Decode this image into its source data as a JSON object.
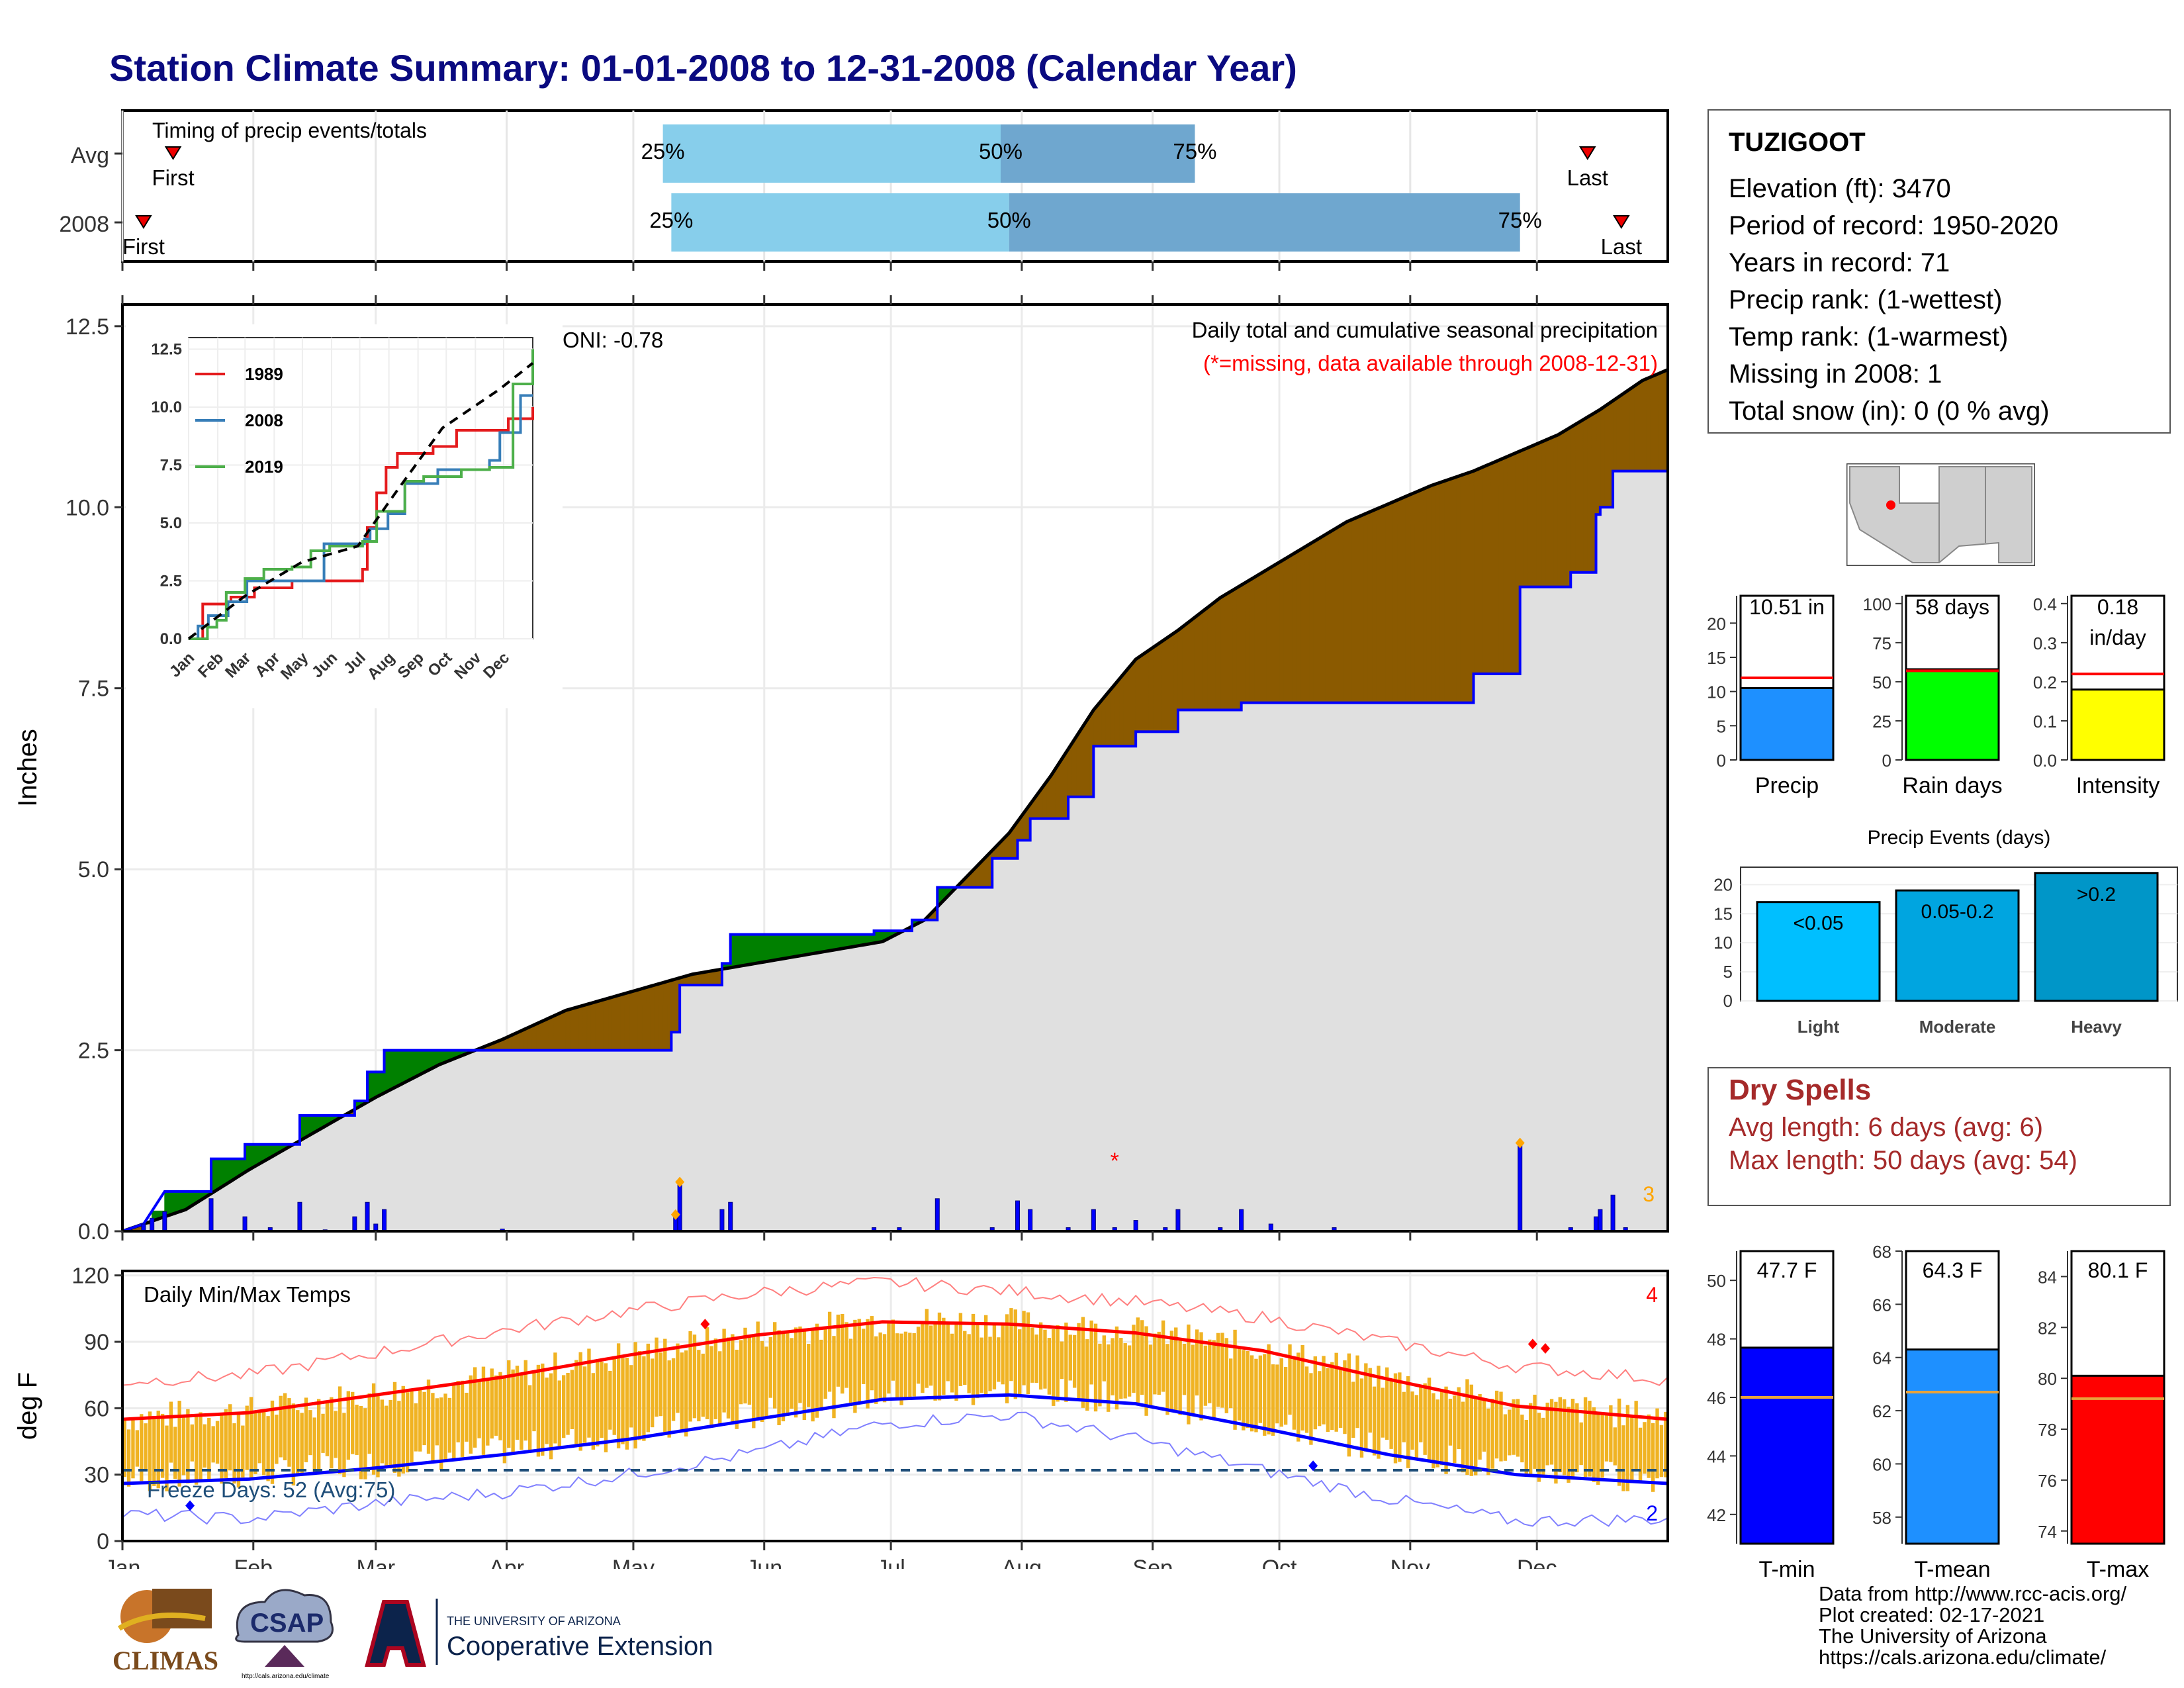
{
  "title": "Station Climate Summary: 01-01-2008 to 12-31-2008 (Calendar Year)",
  "months": [
    "Jan",
    "Feb",
    "Mar",
    "Apr",
    "May",
    "Jun",
    "Jul",
    "Aug",
    "Sep",
    "Oct",
    "Nov",
    "Dec"
  ],
  "colors": {
    "title": "#0a0a80",
    "cum_surplus": "#008000",
    "cum_deficit": "#8b5a00",
    "daily_precip": "#0000ff",
    "normal_fill": "#e0e0e0",
    "tmax": "#ff0000",
    "tmin": "#0000ff",
    "temp_bar": "#f0b323"
  },
  "timing_panel": {
    "title": "Timing of precip events/totals",
    "rows": [
      {
        "label": "Avg",
        "first_label": "First",
        "last_label": "Last",
        "q25": "25%",
        "q50": "50%",
        "q75": "75%"
      },
      {
        "label": "2008",
        "first_label": "First",
        "last_label": "Last",
        "q25": "25%",
        "q50": "50%",
        "q75": "75%"
      }
    ],
    "chart_data": {
      "type": "bar",
      "note_units": "day of year",
      "rows": [
        {
          "label": "Avg",
          "first": 12,
          "p25": 128,
          "p50": 208,
          "p75": 254,
          "last": 347
        },
        {
          "label": "2008",
          "first": 5,
          "p25": 130,
          "p50": 210,
          "p75": 331,
          "last": 355
        }
      ]
    }
  },
  "precip_panel": {
    "ylabel": "Inches",
    "oni": "ONI: -0.78",
    "subtitle": "Daily total and cumulative seasonal precipitation",
    "missing_note": "(*=missing, data available through 2008-12-31)",
    "count_label": "3",
    "yticks": [
      "0.0",
      "2.5",
      "5.0",
      "7.5",
      "10.0",
      "12.5"
    ],
    "chart_data": {
      "type": "area",
      "x_units": "day of year",
      "ylim": [
        0,
        12.8
      ],
      "normal_cumulative": [
        [
          0,
          0
        ],
        [
          15,
          0.3
        ],
        [
          30,
          0.85
        ],
        [
          45,
          1.35
        ],
        [
          60,
          1.85
        ],
        [
          75,
          2.3
        ],
        [
          90,
          2.65
        ],
        [
          105,
          3.05
        ],
        [
          120,
          3.3
        ],
        [
          135,
          3.55
        ],
        [
          150,
          3.7
        ],
        [
          165,
          3.85
        ],
        [
          180,
          4.0
        ],
        [
          190,
          4.3
        ],
        [
          200,
          4.9
        ],
        [
          210,
          5.5
        ],
        [
          220,
          6.3
        ],
        [
          230,
          7.2
        ],
        [
          240,
          7.9
        ],
        [
          250,
          8.3
        ],
        [
          260,
          8.75
        ],
        [
          270,
          9.1
        ],
        [
          280,
          9.45
        ],
        [
          290,
          9.8
        ],
        [
          300,
          10.05
        ],
        [
          310,
          10.3
        ],
        [
          320,
          10.5
        ],
        [
          330,
          10.75
        ],
        [
          340,
          11.0
        ],
        [
          350,
          11.35
        ],
        [
          360,
          11.75
        ],
        [
          366,
          11.9
        ]
      ],
      "observed_2008_cumulative": [
        [
          0,
          0
        ],
        [
          5,
          0.1
        ],
        [
          7,
          0.28
        ],
        [
          10,
          0.55
        ],
        [
          21,
          0.55
        ],
        [
          21,
          1.0
        ],
        [
          29,
          1.0
        ],
        [
          29,
          1.2
        ],
        [
          42,
          1.2
        ],
        [
          42,
          1.6
        ],
        [
          55,
          1.6
        ],
        [
          55,
          1.8
        ],
        [
          58,
          1.8
        ],
        [
          58,
          2.2
        ],
        [
          62,
          2.2
        ],
        [
          62,
          2.5
        ],
        [
          130,
          2.5
        ],
        [
          130,
          2.75
        ],
        [
          132,
          2.75
        ],
        [
          132,
          3.4
        ],
        [
          142,
          3.4
        ],
        [
          142,
          3.7
        ],
        [
          144,
          3.7
        ],
        [
          144,
          4.1
        ],
        [
          178,
          4.1
        ],
        [
          178,
          4.15
        ],
        [
          187,
          4.15
        ],
        [
          187,
          4.3
        ],
        [
          193,
          4.3
        ],
        [
          193,
          4.75
        ],
        [
          206,
          4.75
        ],
        [
          206,
          5.15
        ],
        [
          212,
          5.15
        ],
        [
          212,
          5.4
        ],
        [
          215,
          5.4
        ],
        [
          215,
          5.7
        ],
        [
          224,
          5.7
        ],
        [
          224,
          6.0
        ],
        [
          230,
          6.0
        ],
        [
          230,
          6.7
        ],
        [
          240,
          6.7
        ],
        [
          240,
          6.9
        ],
        [
          250,
          6.9
        ],
        [
          250,
          7.2
        ],
        [
          265,
          7.2
        ],
        [
          265,
          7.3
        ],
        [
          320,
          7.3
        ],
        [
          320,
          7.7
        ],
        [
          331,
          7.7
        ],
        [
          331,
          8.9
        ],
        [
          343,
          8.9
        ],
        [
          343,
          9.1
        ],
        [
          349,
          9.1
        ],
        [
          349,
          9.9
        ],
        [
          350,
          9.9
        ],
        [
          350,
          10.0
        ],
        [
          353,
          10.0
        ],
        [
          353,
          10.5
        ],
        [
          366,
          10.5
        ]
      ],
      "daily_precip": [
        [
          5,
          0.1
        ],
        [
          7,
          0.18
        ],
        [
          10,
          0.27
        ],
        [
          21,
          0.45
        ],
        [
          29,
          0.2
        ],
        [
          35,
          0.05
        ],
        [
          42,
          0.4
        ],
        [
          48,
          0.02
        ],
        [
          55,
          0.2
        ],
        [
          58,
          0.4
        ],
        [
          60,
          0.1
        ],
        [
          62,
          0.3
        ],
        [
          90,
          0.03
        ],
        [
          131,
          0.25
        ],
        [
          132,
          0.65
        ],
        [
          142,
          0.3
        ],
        [
          144,
          0.4
        ],
        [
          178,
          0.05
        ],
        [
          184,
          0.05
        ],
        [
          193,
          0.45
        ],
        [
          206,
          0.05
        ],
        [
          212,
          0.42
        ],
        [
          215,
          0.3
        ],
        [
          224,
          0.05
        ],
        [
          230,
          0.3
        ],
        [
          235,
          0.05
        ],
        [
          240,
          0.15
        ],
        [
          247,
          0.05
        ],
        [
          250,
          0.3
        ],
        [
          260,
          0.05
        ],
        [
          265,
          0.3
        ],
        [
          272,
          0.1
        ],
        [
          287,
          0.05
        ],
        [
          331,
          1.2
        ],
        [
          343,
          0.05
        ],
        [
          349,
          0.2
        ],
        [
          350,
          0.3
        ],
        [
          353,
          0.5
        ],
        [
          356,
          0.05
        ]
      ],
      "max_markers": [
        [
          131,
          0.23
        ],
        [
          132,
          0.68
        ],
        [
          331,
          1.22
        ]
      ],
      "missing_markers": [
        [
          235,
          0.98
        ]
      ]
    }
  },
  "inset_chart": {
    "legend": [
      {
        "name": "1989",
        "color": "#e41a1c"
      },
      {
        "name": "2008",
        "color": "#377eb8"
      },
      {
        "name": "2019",
        "color": "#4daf4a"
      }
    ],
    "months": [
      "Jan",
      "Feb",
      "Mar",
      "Apr",
      "May",
      "Jun",
      "Jul",
      "Aug",
      "Sep",
      "Oct",
      "Nov",
      "Dec"
    ],
    "yticks": [
      "0.0",
      "2.5",
      "5.0",
      "7.5",
      "10.0",
      "12.5"
    ],
    "chart_data": {
      "type": "line",
      "x_units": "day of year",
      "ylim": [
        0,
        13
      ],
      "series": [
        {
          "name": "1989",
          "values": [
            [
              0,
              0
            ],
            [
              15,
              1.5
            ],
            [
              40,
              1.6
            ],
            [
              45,
              1.8
            ],
            [
              70,
              2.2
            ],
            [
              110,
              2.5
            ],
            [
              120,
              2.5
            ],
            [
              185,
              3.0
            ],
            [
              190,
              4.8
            ],
            [
              200,
              6.3
            ],
            [
              210,
              7.4
            ],
            [
              222,
              8.0
            ],
            [
              260,
              8.3
            ],
            [
              285,
              9.0
            ],
            [
              310,
              9.0
            ],
            [
              340,
              9.5
            ],
            [
              366,
              10.0
            ]
          ]
        },
        {
          "name": "2008",
          "values": [
            [
              0,
              0
            ],
            [
              10,
              0.55
            ],
            [
              21,
              1.0
            ],
            [
              42,
              1.6
            ],
            [
              62,
              2.5
            ],
            [
              130,
              2.5
            ],
            [
              144,
              4.1
            ],
            [
              187,
              4.3
            ],
            [
              193,
              4.75
            ],
            [
              212,
              5.4
            ],
            [
              230,
              6.7
            ],
            [
              265,
              7.3
            ],
            [
              320,
              7.7
            ],
            [
              331,
              8.9
            ],
            [
              353,
              10.5
            ],
            [
              366,
              10.5
            ]
          ]
        },
        {
          "name": "2019",
          "values": [
            [
              0,
              0
            ],
            [
              20,
              0.5
            ],
            [
              30,
              0.8
            ],
            [
              40,
              2.0
            ],
            [
              60,
              2.6
            ],
            [
              80,
              3.0
            ],
            [
              110,
              3.1
            ],
            [
              130,
              3.8
            ],
            [
              150,
              4.0
            ],
            [
              185,
              4.2
            ],
            [
              200,
              5.5
            ],
            [
              230,
              6.8
            ],
            [
              250,
              7.0
            ],
            [
              290,
              7.3
            ],
            [
              320,
              7.4
            ],
            [
              345,
              11.0
            ],
            [
              366,
              12.5
            ]
          ]
        },
        {
          "name": "avg",
          "values": [
            [
              0,
              0
            ],
            [
              60,
              1.85
            ],
            [
              120,
              3.3
            ],
            [
              180,
              4.0
            ],
            [
              220,
              6.3
            ],
            [
              270,
              9.1
            ],
            [
              330,
              10.75
            ],
            [
              366,
              11.9
            ]
          ]
        }
      ]
    }
  },
  "temp_panel": {
    "title": "Daily Min/Max Temps",
    "ylabel": "deg F",
    "freeze_label": "Freeze Days: 52 (Avg:75)",
    "count_hi": "4",
    "count_lo": "2",
    "yticks": [
      "0",
      "30",
      "60",
      "90",
      "120"
    ],
    "chart_data": {
      "type": "line",
      "x_units": "day of year",
      "ylim": [
        0,
        122
      ],
      "normal_max": [
        [
          0,
          55
        ],
        [
          30,
          58
        ],
        [
          60,
          66
        ],
        [
          90,
          74
        ],
        [
          120,
          84
        ],
        [
          150,
          93
        ],
        [
          180,
          99
        ],
        [
          210,
          98
        ],
        [
          240,
          94
        ],
        [
          270,
          86
        ],
        [
          300,
          73
        ],
        [
          330,
          61
        ],
        [
          366,
          55
        ]
      ],
      "normal_min": [
        [
          0,
          26
        ],
        [
          30,
          28
        ],
        [
          60,
          33
        ],
        [
          90,
          39
        ],
        [
          120,
          46
        ],
        [
          150,
          55
        ],
        [
          180,
          64
        ],
        [
          210,
          66
        ],
        [
          240,
          62
        ],
        [
          270,
          51
        ],
        [
          300,
          39
        ],
        [
          330,
          30
        ],
        [
          366,
          26
        ]
      ],
      "record_max": [
        [
          0,
          72
        ],
        [
          30,
          75
        ],
        [
          60,
          85
        ],
        [
          90,
          95
        ],
        [
          120,
          104
        ],
        [
          150,
          112
        ],
        [
          180,
          117
        ],
        [
          210,
          113
        ],
        [
          240,
          108
        ],
        [
          270,
          101
        ],
        [
          300,
          90
        ],
        [
          330,
          79
        ],
        [
          366,
          73
        ]
      ],
      "record_min": [
        [
          0,
          12
        ],
        [
          30,
          10
        ],
        [
          60,
          17
        ],
        [
          90,
          22
        ],
        [
          120,
          30
        ],
        [
          150,
          40
        ],
        [
          180,
          53
        ],
        [
          210,
          57
        ],
        [
          240,
          46
        ],
        [
          270,
          32
        ],
        [
          300,
          19
        ],
        [
          330,
          9
        ],
        [
          366,
          10
        ]
      ],
      "freeze_line": 32,
      "record_hi_markers": [
        [
          138,
          98
        ],
        [
          334,
          89
        ],
        [
          337,
          87
        ]
      ],
      "record_lo_markers": [
        [
          16,
          16
        ],
        [
          282,
          34
        ]
      ]
    }
  },
  "station_box": {
    "name": "TUZIGOOT",
    "lines": [
      "Elevation (ft): 3470",
      "Period of record: 1950-2020",
      "Years in record: 71",
      "Precip rank:  (1-wettest)",
      "Temp rank:  (1-warmest)",
      "Missing in 2008: 1",
      "Total snow (in): 0 (0 % avg)"
    ]
  },
  "summary_bars": [
    {
      "name": "Precip",
      "label": "10.51 in",
      "value": 10.51,
      "avg": 12.0,
      "ylim": [
        0,
        24
      ],
      "yticks": [
        "0",
        "5",
        "10",
        "15",
        "20"
      ],
      "color": "#1e90ff"
    },
    {
      "name": "Rain days",
      "label": "58 days",
      "value": 58,
      "avg": 57,
      "ylim": [
        0,
        105
      ],
      "yticks": [
        "0",
        "25",
        "50",
        "75",
        "100"
      ],
      "color": "#00ff00"
    },
    {
      "name": "Intensity",
      "label": "0.18 in/day",
      "value": 0.18,
      "avg": 0.22,
      "ylim": [
        0,
        0.42
      ],
      "yticks": [
        "0.0",
        "0.1",
        "0.2",
        "0.3",
        "0.4"
      ],
      "color": "#ffff00"
    }
  ],
  "events_chart": {
    "title": "Precip Events (days)",
    "yticks": [
      "0",
      "5",
      "10",
      "15",
      "20"
    ],
    "chart_data": {
      "type": "bar",
      "categories": [
        "Light",
        "Moderate",
        "Heavy"
      ],
      "labels": [
        "<0.05",
        "0.05-0.2",
        ">0.2"
      ],
      "values": [
        17,
        19,
        22
      ],
      "ylim": [
        0,
        23
      ]
    }
  },
  "dry_spells": {
    "title": "Dry Spells",
    "avg_line": "Avg length: 6 days (avg: 6)",
    "max_line": "Max length: 50 days (avg: 54)"
  },
  "temp_bars": [
    {
      "name": "T-min",
      "label": "47.7 F",
      "value": 47.7,
      "avg": 46.0,
      "ylim": [
        41,
        51
      ],
      "yticks": [
        "42",
        "44",
        "46",
        "48",
        "50"
      ],
      "color": "#0000ff"
    },
    {
      "name": "T-mean",
      "label": "64.3 F",
      "value": 64.3,
      "avg": 62.7,
      "ylim": [
        57,
        68
      ],
      "yticks": [
        "58",
        "60",
        "62",
        "64",
        "66",
        "68"
      ],
      "color": "#1e90ff"
    },
    {
      "name": "T-max",
      "label": "80.1 F",
      "value": 80.1,
      "avg": 79.2,
      "ylim": [
        73.5,
        85
      ],
      "yticks": [
        "74",
        "76",
        "78",
        "80",
        "82",
        "84"
      ],
      "color": "#ff0000"
    }
  ],
  "logos": {
    "climas": "CLIMAS",
    "csap": "CSAP",
    "csap_url": "http://cals.arizona.edu/climate",
    "ua_small": "THE UNIVERSITY OF ARIZONA",
    "ua_ext": "Cooperative Extension"
  },
  "credits": [
    "Data from http://www.rcc-acis.org/",
    "Plot created: 02-17-2021",
    "The University of Arizona",
    "https://cals.arizona.edu/climate/"
  ]
}
